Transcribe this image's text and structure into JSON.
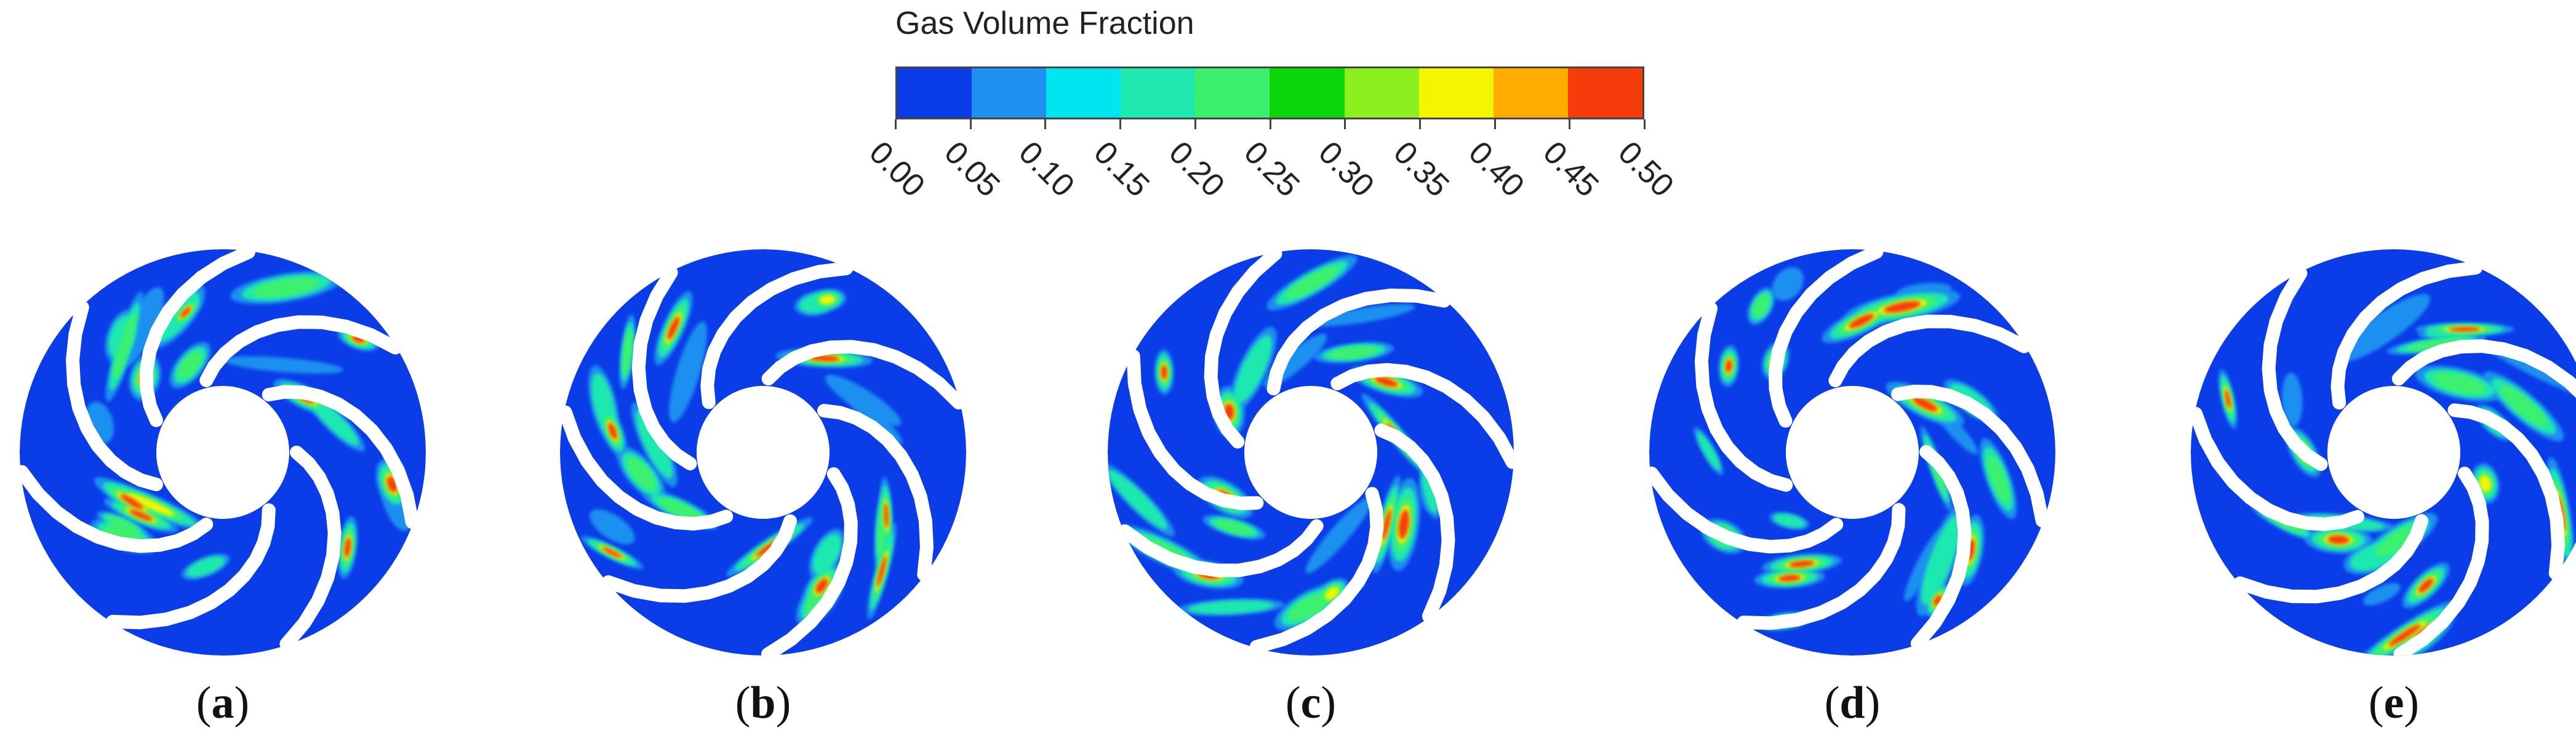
{
  "legend": {
    "title": "Gas Volume Fraction",
    "ticks": [
      "0.00",
      "0.05",
      "0.10",
      "0.15",
      "0.20",
      "0.25",
      "0.30",
      "0.35",
      "0.40",
      "0.45",
      "0.50"
    ],
    "colors": [
      "#0a3ce8",
      "#1e90f0",
      "#00e6f0",
      "#1fe8b0",
      "#3cf06e",
      "#0ad60a",
      "#8cf01e",
      "#f5f500",
      "#ffab00",
      "#f53c0a"
    ]
  },
  "panels": [
    {
      "open": "(",
      "letter": "a",
      "close": ")"
    },
    {
      "open": "(",
      "letter": "b",
      "close": ")"
    },
    {
      "open": "(",
      "letter": "c",
      "close": ")"
    },
    {
      "open": "(",
      "letter": "d",
      "close": ")"
    },
    {
      "open": "(",
      "letter": "e",
      "close": ")"
    }
  ]
}
